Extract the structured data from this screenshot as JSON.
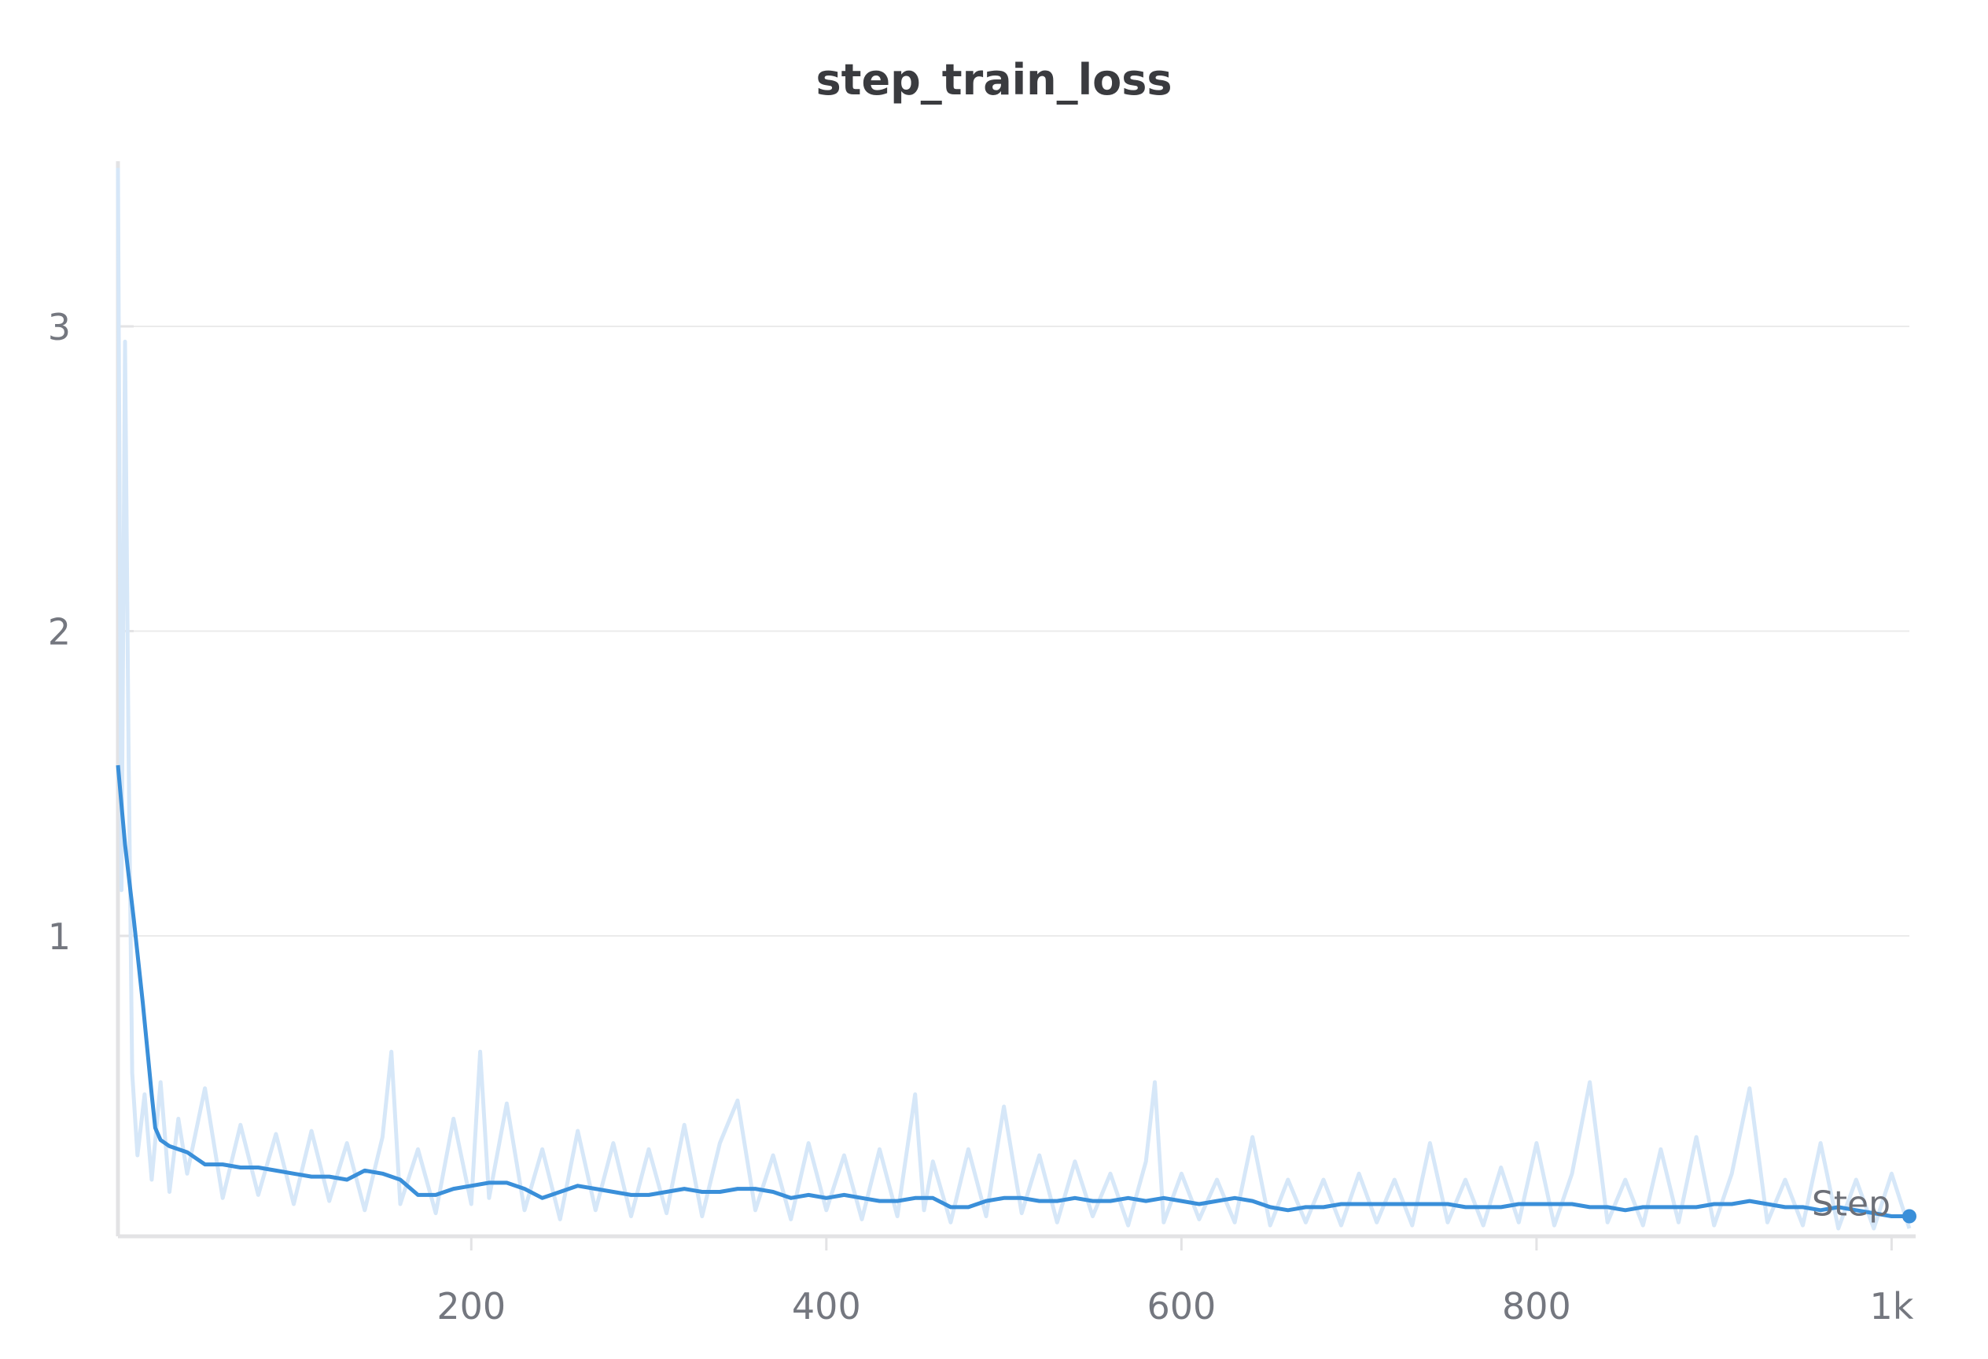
{
  "chart_data": {
    "type": "line",
    "title": "step_train_loss",
    "xlabel": "",
    "ylabel": "",
    "xlim": [
      1,
      1010
    ],
    "ylim": [
      0.0,
      3.55
    ],
    "x_ticks": [
      200,
      400,
      600,
      800,
      1000
    ],
    "x_tick_labels": [
      "200",
      "400",
      "600",
      "800",
      "1k"
    ],
    "y_ticks": [
      1,
      2,
      3
    ],
    "y_tick_labels": [
      "1",
      "2",
      "3"
    ],
    "grid": "horizontal",
    "legend": "none",
    "end_label": "Step",
    "colors": {
      "smoothed": "#3a8fd9",
      "raw": "#d6e7f8",
      "grid": "#ebebeb",
      "axis": "#e3e3e5"
    },
    "series": [
      {
        "role": "raw",
        "x": [
          1,
          3,
          5,
          7,
          9,
          12,
          16,
          20,
          25,
          30,
          35,
          40,
          50,
          60,
          70,
          80,
          90,
          100,
          110,
          120,
          130,
          140,
          150,
          155,
          160,
          170,
          180,
          190,
          200,
          205,
          210,
          220,
          230,
          240,
          250,
          260,
          270,
          280,
          290,
          300,
          310,
          320,
          330,
          340,
          350,
          360,
          370,
          380,
          390,
          400,
          410,
          420,
          430,
          440,
          450,
          455,
          460,
          470,
          480,
          490,
          500,
          510,
          520,
          530,
          540,
          550,
          560,
          570,
          580,
          585,
          590,
          600,
          610,
          620,
          630,
          640,
          650,
          660,
          670,
          680,
          690,
          700,
          710,
          720,
          730,
          740,
          750,
          760,
          770,
          780,
          790,
          800,
          810,
          820,
          830,
          840,
          850,
          860,
          870,
          880,
          890,
          900,
          910,
          920,
          930,
          940,
          950,
          960,
          970,
          980,
          990,
          1000,
          1010
        ],
        "values": [
          3.52,
          1.15,
          2.95,
          1.6,
          0.55,
          0.28,
          0.48,
          0.2,
          0.52,
          0.16,
          0.4,
          0.22,
          0.5,
          0.14,
          0.38,
          0.15,
          0.35,
          0.12,
          0.36,
          0.13,
          0.32,
          0.1,
          0.34,
          0.62,
          0.12,
          0.3,
          0.09,
          0.4,
          0.12,
          0.62,
          0.14,
          0.45,
          0.1,
          0.3,
          0.07,
          0.36,
          0.1,
          0.32,
          0.08,
          0.3,
          0.09,
          0.38,
          0.08,
          0.32,
          0.46,
          0.1,
          0.28,
          0.07,
          0.32,
          0.1,
          0.28,
          0.07,
          0.3,
          0.08,
          0.48,
          0.1,
          0.26,
          0.06,
          0.3,
          0.08,
          0.44,
          0.09,
          0.28,
          0.06,
          0.26,
          0.08,
          0.22,
          0.05,
          0.26,
          0.52,
          0.06,
          0.22,
          0.07,
          0.2,
          0.06,
          0.34,
          0.05,
          0.2,
          0.06,
          0.2,
          0.05,
          0.22,
          0.06,
          0.2,
          0.05,
          0.32,
          0.06,
          0.2,
          0.05,
          0.24,
          0.06,
          0.32,
          0.05,
          0.22,
          0.52,
          0.06,
          0.2,
          0.05,
          0.3,
          0.06,
          0.34,
          0.05,
          0.22,
          0.5,
          0.06,
          0.2,
          0.05,
          0.32,
          0.04,
          0.2,
          0.04,
          0.22,
          0.04
        ]
      },
      {
        "role": "smoothed",
        "x": [
          1,
          5,
          10,
          15,
          18,
          20,
          22,
          25,
          30,
          35,
          40,
          50,
          60,
          70,
          80,
          90,
          100,
          110,
          120,
          130,
          140,
          150,
          160,
          170,
          180,
          190,
          200,
          210,
          220,
          230,
          240,
          250,
          260,
          270,
          280,
          290,
          300,
          310,
          320,
          330,
          340,
          350,
          360,
          370,
          380,
          390,
          400,
          410,
          420,
          430,
          440,
          450,
          460,
          470,
          480,
          490,
          500,
          510,
          520,
          530,
          540,
          550,
          560,
          570,
          580,
          590,
          600,
          610,
          620,
          630,
          640,
          650,
          660,
          670,
          680,
          690,
          700,
          710,
          720,
          730,
          740,
          750,
          760,
          770,
          780,
          790,
          800,
          810,
          820,
          830,
          840,
          850,
          860,
          870,
          880,
          890,
          900,
          910,
          920,
          930,
          940,
          950,
          960,
          970,
          980,
          990,
          1000,
          1010
        ],
        "values": [
          1.56,
          1.3,
          1.05,
          0.78,
          0.6,
          0.48,
          0.37,
          0.33,
          0.31,
          0.3,
          0.29,
          0.25,
          0.25,
          0.24,
          0.24,
          0.23,
          0.22,
          0.21,
          0.21,
          0.2,
          0.23,
          0.22,
          0.2,
          0.15,
          0.15,
          0.17,
          0.18,
          0.19,
          0.19,
          0.17,
          0.14,
          0.16,
          0.18,
          0.17,
          0.16,
          0.15,
          0.15,
          0.16,
          0.17,
          0.16,
          0.16,
          0.17,
          0.17,
          0.16,
          0.14,
          0.15,
          0.14,
          0.15,
          0.14,
          0.13,
          0.13,
          0.14,
          0.14,
          0.11,
          0.11,
          0.13,
          0.14,
          0.14,
          0.13,
          0.13,
          0.14,
          0.13,
          0.13,
          0.14,
          0.13,
          0.14,
          0.13,
          0.12,
          0.13,
          0.14,
          0.13,
          0.11,
          0.1,
          0.11,
          0.11,
          0.12,
          0.12,
          0.12,
          0.12,
          0.12,
          0.12,
          0.12,
          0.11,
          0.11,
          0.11,
          0.12,
          0.12,
          0.12,
          0.12,
          0.11,
          0.11,
          0.1,
          0.11,
          0.11,
          0.11,
          0.11,
          0.12,
          0.12,
          0.13,
          0.12,
          0.11,
          0.11,
          0.1,
          0.11,
          0.1,
          0.09,
          0.08,
          0.08
        ]
      }
    ]
  }
}
